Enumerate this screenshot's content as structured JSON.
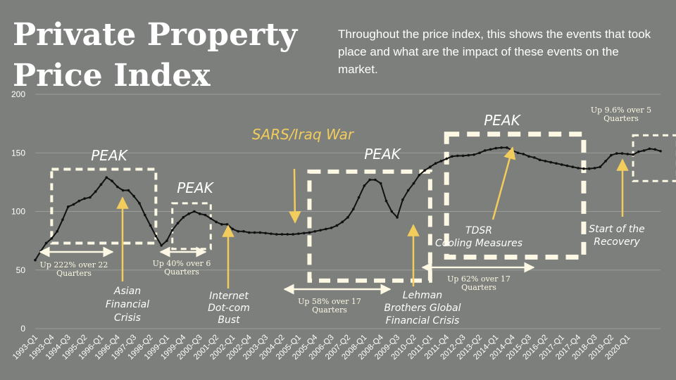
{
  "page": {
    "title_line1": "Private Property",
    "title_line2": "Price Index",
    "description": "Throughout the price index, this shows the events that took place and what are the impact of these events on the market."
  },
  "colors": {
    "background": "#7c7f7c",
    "text": "#ffffff",
    "line": "#111111",
    "highlight": "#f2cd5c",
    "box": "#fdf8e4"
  },
  "chart_data": {
    "type": "line",
    "title": "Private Property Price Index",
    "ylim": [
      0,
      200
    ],
    "yticks": [
      0,
      50,
      100,
      150,
      200
    ],
    "grid": true,
    "tick_labels": [
      "1993-Q1",
      "1993-Q4",
      "1994-Q3",
      "1995-Q2",
      "1996-Q1",
      "1996-Q4",
      "1997-Q3",
      "1998-Q2",
      "1999-Q1",
      "1999-Q4",
      "2000-Q3",
      "2001-Q2",
      "2002-Q1",
      "2002-Q4",
      "2003-Q3",
      "2004-Q2",
      "2005-Q1",
      "2005-Q4",
      "2006-Q3",
      "2007-Q2",
      "2008-Q1",
      "2008-Q4",
      "2009-Q3",
      "2010-Q2",
      "2011-Q1",
      "2011-Q4",
      "2012-Q3",
      "2013-Q2",
      "2014-Q1",
      "2014-Q4",
      "2015-Q3",
      "2016-Q2",
      "2017-Q1",
      "2017-Q4",
      "2018-Q3",
      "2019-Q2",
      "2020-Q1"
    ],
    "series": [
      {
        "x_start": "1993-Q1",
        "x_step": "quarter",
        "values": [
          58.5,
          66,
          73,
          77,
          83,
          93,
          104,
          106,
          109,
          111,
          112,
          117,
          123,
          129,
          126,
          121,
          118,
          118,
          113,
          107,
          97,
          88,
          79,
          71,
          75,
          84,
          90,
          95,
          98,
          100,
          98,
          97,
          94,
          91,
          89,
          89,
          85,
          83,
          83,
          82,
          82,
          82,
          81.5,
          81,
          80.5,
          80.5,
          80.5,
          80.5,
          81,
          81.5,
          82,
          83,
          84,
          85,
          86,
          88,
          91,
          95,
          102,
          112,
          122,
          127,
          127,
          124,
          109,
          100,
          95,
          110,
          118,
          124,
          131,
          135,
          138,
          141,
          143,
          145,
          147,
          147.5,
          147.5,
          148,
          148.5,
          150,
          152,
          153,
          154,
          154.5,
          154.5,
          152,
          150,
          149,
          147,
          146,
          144,
          143,
          142,
          141,
          140,
          139,
          138,
          137,
          136.5,
          136.5,
          137,
          138,
          143,
          148,
          149.5,
          149.5,
          149,
          148.5,
          151,
          152,
          153.5,
          153,
          151.5
        ]
      }
    ],
    "peaks": [
      "PEAK",
      "PEAK",
      "PEAK",
      "PEAK"
    ],
    "events": [
      {
        "label": [
          "Asian",
          "Financial",
          "Crisis"
        ]
      },
      {
        "label": [
          "Internet",
          "Dot-com",
          "Bust"
        ]
      },
      {
        "label": [
          "SARS/Iraq War"
        ]
      },
      {
        "label": [
          "Lehman",
          "Brothers Global",
          "Financial Crisis"
        ]
      },
      {
        "label": [
          "TDSR",
          "Cooling Measures"
        ]
      },
      {
        "label": [
          "Start of the",
          "Recovery"
        ]
      }
    ],
    "growth_annotations": [
      {
        "label": [
          "Up 222% over 22",
          "Quarters"
        ]
      },
      {
        "label": [
          "Up 40% over 6",
          "Quarters"
        ]
      },
      {
        "label": [
          "Up 58% over 17",
          "Quarters"
        ]
      },
      {
        "label": [
          "Up 62% over 17",
          "Quarters"
        ]
      },
      {
        "label": [
          "Up 9.6% over 5",
          "Quarters"
        ]
      }
    ]
  }
}
